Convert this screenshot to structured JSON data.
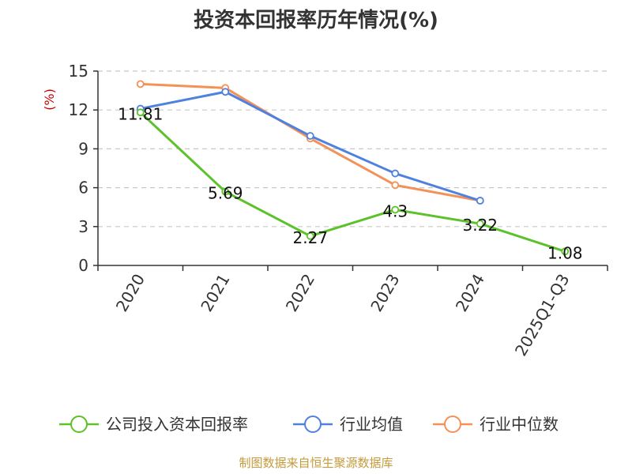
{
  "chart_data": {
    "type": "line",
    "title": "投资本回报率历年情况(%)",
    "ylabel": "(%)",
    "categories": [
      "2020",
      "2021",
      "2022",
      "2023",
      "2024",
      "2025Q1-Q3"
    ],
    "ylim": [
      0,
      15
    ],
    "yticks": [
      0,
      3,
      6,
      9,
      12,
      15
    ],
    "grid": true,
    "legend_position": "bottom",
    "series": [
      {
        "name": "公司投入资本回报率",
        "color": "#5bc22a",
        "values": [
          11.81,
          5.69,
          2.27,
          4.3,
          3.22,
          1.08
        ],
        "labels": [
          "11.81",
          "5.69",
          "2.27",
          "4.3",
          "3.22",
          "1.08"
        ]
      },
      {
        "name": "行业均值",
        "color": "#4f81e0",
        "values": [
          12.1,
          13.4,
          10.0,
          7.1,
          5.0,
          null
        ]
      },
      {
        "name": "行业中位数",
        "color": "#f39157",
        "values": [
          14.0,
          13.7,
          9.8,
          6.2,
          5.0,
          null
        ]
      }
    ]
  },
  "footer": {
    "source": "制图数据来自恒生聚源数据库"
  }
}
